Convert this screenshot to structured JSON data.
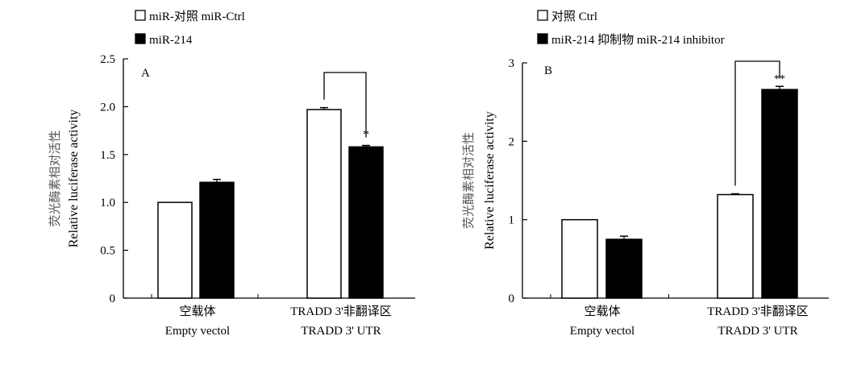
{
  "chart_data": [
    {
      "type": "bar",
      "panel_label": "A",
      "categories": [
        {
          "cn": "空载体",
          "en": "Empty vectol"
        },
        {
          "cn": "TRADD 3'非翻译区",
          "en": "TRADD 3' UTR"
        }
      ],
      "series": [
        {
          "name": "miR-对照 miR-Ctrl",
          "values": [
            1.0,
            1.97
          ],
          "errors": [
            0,
            0.02
          ],
          "fill": "#ffffff"
        },
        {
          "name": "miR-214",
          "values": [
            1.21,
            1.58
          ],
          "errors": [
            0.03,
            0.015
          ],
          "fill": "#000000"
        }
      ],
      "ylabel_cn": "荧光酶素相对活性",
      "ylabel_en": "Relative luciferase activity",
      "yticks": [
        "0",
        "0.5",
        "1.0",
        "1.5",
        "2.0",
        "2.5"
      ],
      "ylim": [
        0,
        2.5
      ],
      "significance": [
        {
          "category": 1,
          "mark": "*"
        }
      ],
      "legend_position": "top-left"
    },
    {
      "type": "bar",
      "panel_label": "B",
      "categories": [
        {
          "cn": "空载体",
          "en": "Empty vectol"
        },
        {
          "cn": "TRADD 3'非翻译区",
          "en": "TRADD 3' UTR"
        }
      ],
      "series": [
        {
          "name": "对照 Ctrl",
          "values": [
            1.0,
            1.32
          ],
          "errors": [
            0,
            0.01
          ],
          "fill": "#ffffff"
        },
        {
          "name": "miR-214 抑制物 miR-214 inhibitor",
          "values": [
            0.75,
            2.66
          ],
          "errors": [
            0.04,
            0.04
          ],
          "fill": "#000000"
        }
      ],
      "ylabel_cn": "荧光酶素相对活性",
      "ylabel_en": "Relative luciferase activity",
      "yticks": [
        "0",
        "1",
        "2",
        "3"
      ],
      "ylim": [
        0,
        3
      ],
      "significance": [
        {
          "category": 1,
          "mark": "**"
        }
      ],
      "legend_position": "top-left"
    }
  ]
}
